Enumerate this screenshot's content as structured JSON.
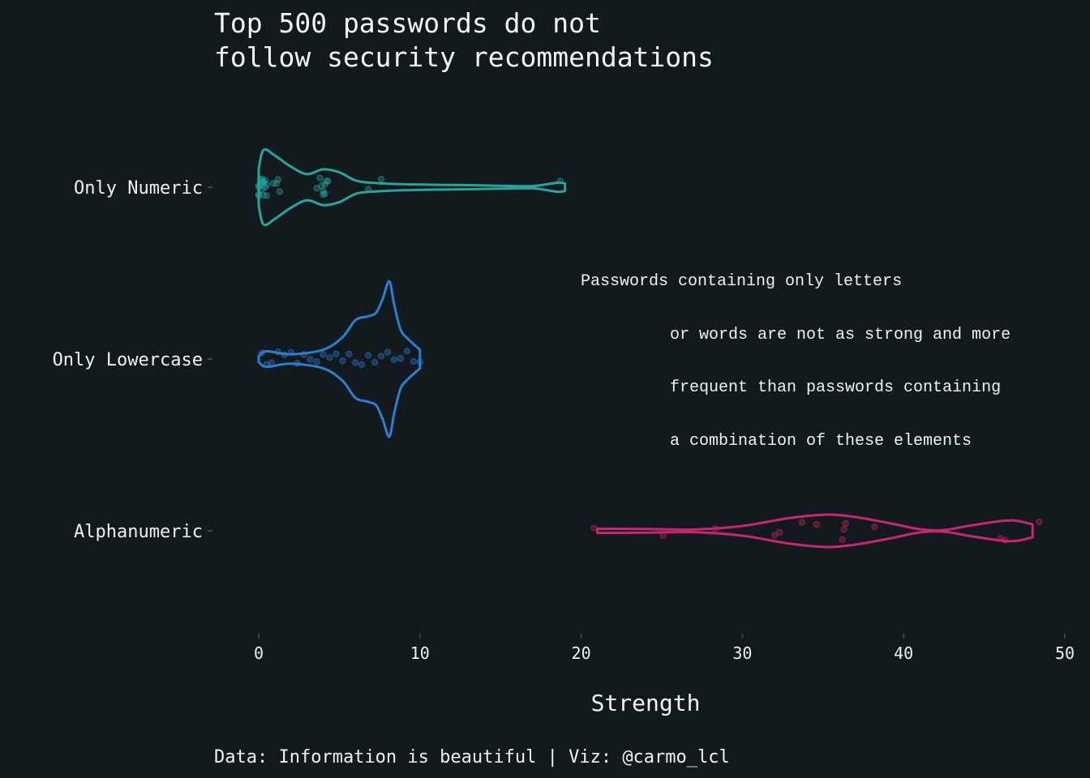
{
  "colors": {
    "background": "#131a1d",
    "text": "#f0f0f0",
    "numeric": "#26a69a",
    "lowercase": "#2a7fd4",
    "alphanumeric": "#c8266e"
  },
  "chart_data": {
    "type": "violin",
    "title_lines": [
      "Top 500 passwords do not",
      "follow security recommendations"
    ],
    "xlabel": "Strength",
    "ylabel": "",
    "xlim": [
      0,
      50
    ],
    "xticks": [
      0,
      10,
      20,
      30,
      40,
      50
    ],
    "grid": false,
    "legend": "none",
    "caption": "Data: Information is beautiful | Viz: @carmo_lcl",
    "annotation_lines": [
      "Passwords containing only letters",
      "or words are not as strong and more",
      "frequent than passwords containing",
      "a combination of these elements"
    ],
    "categories": [
      "Only Numeric",
      "Only Lowercase",
      "Alphanumeric"
    ],
    "series": [
      {
        "category": "Only Numeric",
        "color": "#26a69a",
        "violin_profile": [
          [
            0,
            0.5
          ],
          [
            0.3,
            1.0
          ],
          [
            1,
            0.85
          ],
          [
            2,
            0.55
          ],
          [
            3,
            0.35
          ],
          [
            4,
            0.48
          ],
          [
            5,
            0.4
          ],
          [
            6,
            0.18
          ],
          [
            7,
            0.12
          ],
          [
            9,
            0.08
          ],
          [
            12,
            0.06
          ],
          [
            15,
            0.04
          ],
          [
            17,
            0.03
          ],
          [
            18.5,
            0.12
          ],
          [
            19,
            0.1
          ]
        ],
        "points": [
          0,
          0,
          0.2,
          0.1,
          0.3,
          0.4,
          0.5,
          0,
          0.2,
          0.3,
          0.1,
          0.5,
          0,
          0.2,
          0.4,
          0.3,
          1.2,
          1.3,
          1.1,
          0.9,
          3.8,
          4.0,
          4.2,
          4.1,
          3.9,
          4.3,
          3.6,
          4.1,
          4.0,
          6.8,
          7.6,
          18.7
        ]
      },
      {
        "category": "Only Lowercase",
        "color": "#2a7fd4",
        "violin_profile": [
          [
            0,
            0.04
          ],
          [
            0.5,
            0.1
          ],
          [
            2,
            0.06
          ],
          [
            4,
            0.12
          ],
          [
            5.2,
            0.28
          ],
          [
            6,
            0.5
          ],
          [
            6.8,
            0.55
          ],
          [
            7.3,
            0.6
          ],
          [
            7.7,
            0.78
          ],
          [
            8.1,
            1.0
          ],
          [
            8.4,
            0.7
          ],
          [
            8.8,
            0.38
          ],
          [
            9.3,
            0.25
          ],
          [
            10,
            0.12
          ]
        ],
        "points": [
          0.2,
          0.5,
          0.8,
          1.2,
          1.6,
          2.0,
          2.4,
          2.8,
          3.2,
          3.6,
          4.0,
          4.4,
          4.8,
          5.2,
          5.6,
          6.0,
          6.4,
          6.8,
          7.2,
          7.6,
          8.0,
          8.4,
          8.8,
          9.2,
          9.6,
          10.0
        ]
      },
      {
        "category": "Alphanumeric",
        "color": "#c8266e",
        "violin_profile": [
          [
            21,
            0.13
          ],
          [
            24,
            0.11
          ],
          [
            27,
            0.08
          ],
          [
            30,
            0.3
          ],
          [
            33,
            0.8
          ],
          [
            35.3,
            1.0
          ],
          [
            37,
            0.85
          ],
          [
            39,
            0.5
          ],
          [
            41,
            0.1
          ],
          [
            42.5,
            0.05
          ],
          [
            44,
            0.3
          ],
          [
            46,
            0.6
          ],
          [
            47,
            0.62
          ],
          [
            48,
            0.4
          ]
        ],
        "points": [
          20.8,
          25.1,
          28.3,
          32.0,
          32.3,
          33.7,
          34.6,
          36.2,
          36.3,
          36.4,
          38.2,
          46.0,
          46.3,
          48.4
        ]
      }
    ]
  }
}
